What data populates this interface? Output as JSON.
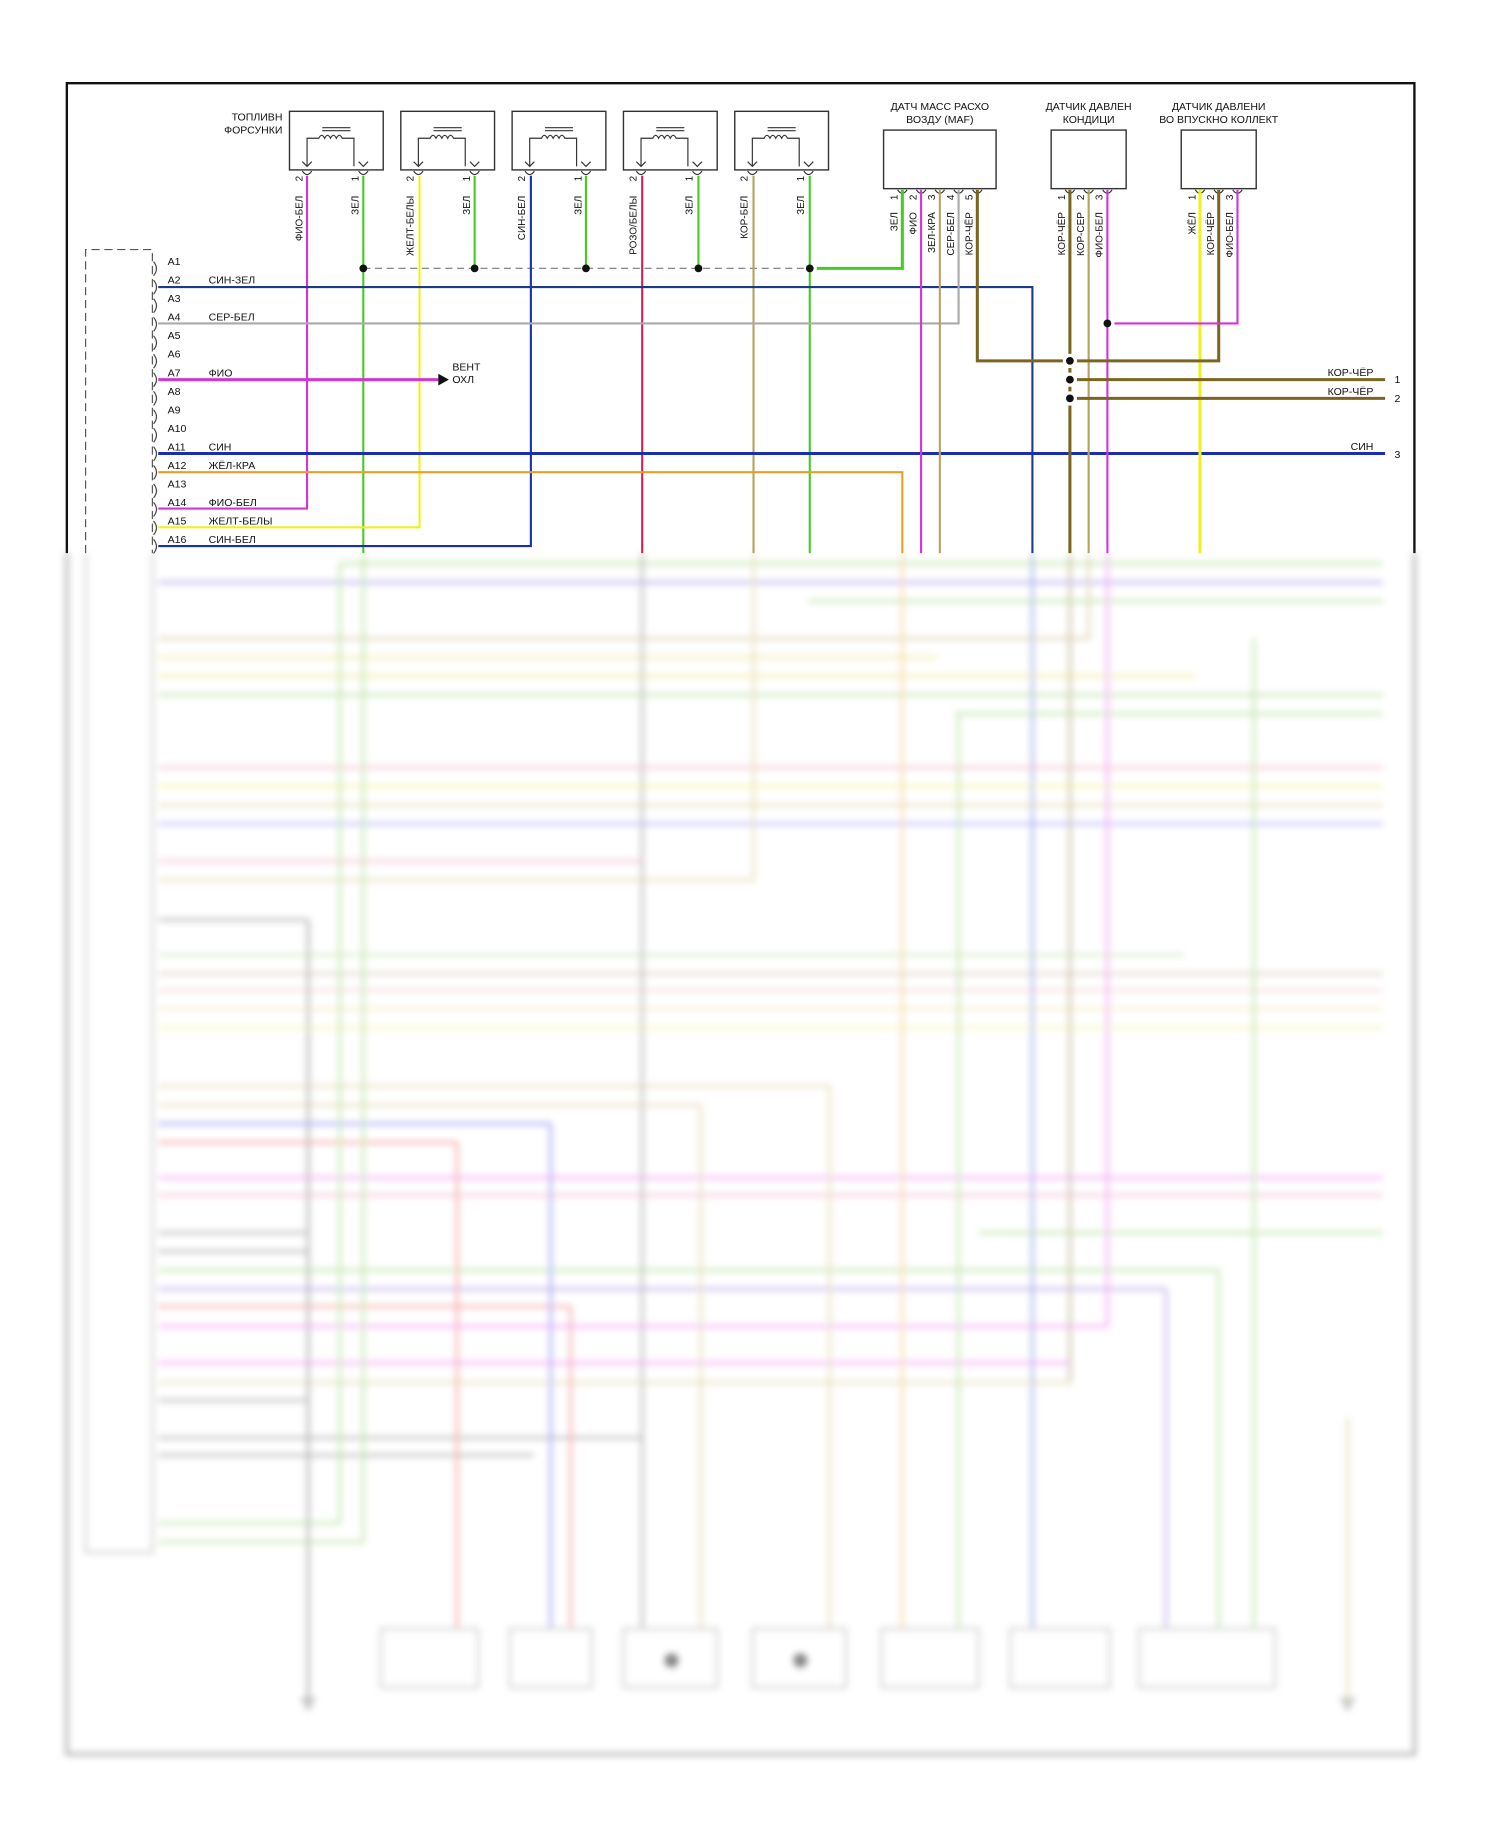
{
  "colors": {
    "green": "#44cc22",
    "magenta": "#d633d6",
    "yellow": "#f0f020",
    "blue": "#1a2fb0",
    "darkblue": "#1a3a8a",
    "crimson": "#cc2255",
    "tan": "#b8a060",
    "brown": "#7a6420",
    "grey": "#aaaaaa",
    "orange": "#e8a020"
  },
  "injectors": {
    "title_line1": "ТОПЛИВН",
    "title_line2": "ФОРСУНКИ",
    "items": [
      {
        "pin2": "2",
        "wire2": "ФИО-БЕЛ",
        "pin1": "1",
        "wire1": "ЗЕЛ"
      },
      {
        "pin2": "2",
        "wire2": "ЖЕЛТ-БЕЛЫ",
        "pin1": "1",
        "wire1": "ЗЕЛ"
      },
      {
        "pin2": "2",
        "wire2": "СИН-БЕЛ",
        "pin1": "1",
        "wire1": "ЗЕЛ"
      },
      {
        "pin2": "2",
        "wire2": "РОЗО/БЕЛЫ",
        "pin1": "1",
        "wire1": "ЗЕЛ"
      },
      {
        "pin2": "2",
        "wire2": "КОР-БЕЛ",
        "pin1": "1",
        "wire1": "ЗЕЛ"
      }
    ]
  },
  "maf": {
    "title_line1": "ДАТЧ МАСС РАСХО",
    "title_line2": "ВОЗДУ (MAF)",
    "pins": [
      {
        "num": "1",
        "wire": "ЗЕЛ"
      },
      {
        "num": "2",
        "wire": "ФИО"
      },
      {
        "num": "3",
        "wire": "ЗЕЛ-КРА"
      },
      {
        "num": "4",
        "wire": "СЕР-БЕЛ"
      },
      {
        "num": "5",
        "wire": "КОР-ЧЁР"
      }
    ]
  },
  "ac_sensor": {
    "title_line1": "ДАТЧИК ДАВЛЕН",
    "title_line2": "КОНДИЦИ",
    "pins": [
      {
        "num": "1",
        "wire": "КОР-ЧЁР"
      },
      {
        "num": "2",
        "wire": "КОР-СЕР"
      },
      {
        "num": "3",
        "wire": "ФИО-БЕЛ"
      }
    ]
  },
  "map_sensor": {
    "title_line1": "ДАТЧИК ДАВЛЕНИ",
    "title_line2": "ВО ВПУСКНО КОЛЛЕКТ",
    "pins": [
      {
        "num": "1",
        "wire": "ЖЁЛ"
      },
      {
        "num": "2",
        "wire": "КОР-ЧЁР"
      },
      {
        "num": "3",
        "wire": "ФИО-БЕЛ"
      }
    ]
  },
  "ecu_pins": [
    {
      "pin": "A1",
      "wire": ""
    },
    {
      "pin": "A2",
      "wire": "СИН-ЗЕЛ"
    },
    {
      "pin": "A3",
      "wire": ""
    },
    {
      "pin": "A4",
      "wire": "СЕР-БЕЛ"
    },
    {
      "pin": "A5",
      "wire": ""
    },
    {
      "pin": "A6",
      "wire": ""
    },
    {
      "pin": "A7",
      "wire": "ФИО"
    },
    {
      "pin": "A8",
      "wire": ""
    },
    {
      "pin": "A9",
      "wire": ""
    },
    {
      "pin": "A10",
      "wire": ""
    },
    {
      "pin": "A11",
      "wire": "СИН"
    },
    {
      "pin": "A12",
      "wire": "ЖЁЛ-КРА"
    },
    {
      "pin": "A13",
      "wire": ""
    },
    {
      "pin": "A14",
      "wire": "ФИО-БЕЛ"
    },
    {
      "pin": "A15",
      "wire": "ЖЕЛТ-БЕЛЫ"
    },
    {
      "pin": "A16",
      "wire": "СИН-БЕЛ"
    }
  ],
  "fan": {
    "line1": "ВЕНТ",
    "line2": "ОХЛ"
  },
  "right_outputs": [
    {
      "wire": "КОР-ЧЁР",
      "num": "1"
    },
    {
      "wire": "КОР-ЧЁР",
      "num": "2"
    },
    {
      "wire": "СИН",
      "num": "3"
    }
  ]
}
